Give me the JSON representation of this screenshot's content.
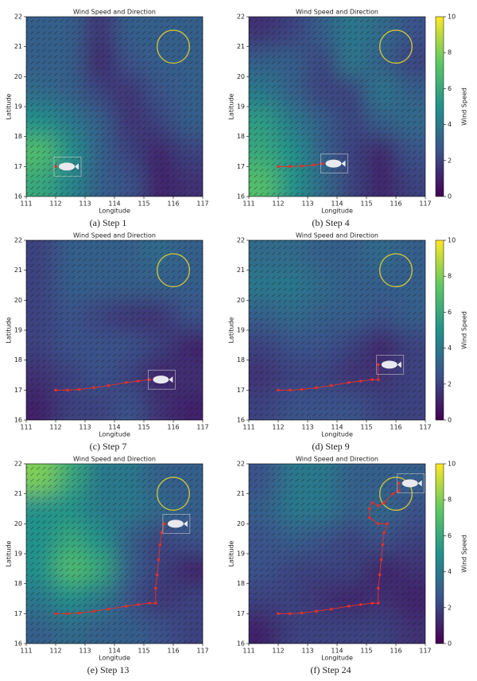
{
  "chart_data": [
    {
      "type": "heatmap",
      "title": "Wind Speed and Direction",
      "x_label": "Longitude",
      "y_label": "Latitude",
      "caption": "(a) Step 1",
      "xlim": [
        111,
        117
      ],
      "ylim": [
        16,
        22
      ],
      "xticks": [
        111,
        112,
        113,
        114,
        115,
        116,
        117
      ],
      "yticks": [
        16,
        17,
        18,
        19,
        20,
        21,
        22
      ],
      "colormap": [
        "#440154",
        "#3b528b",
        "#21918c",
        "#5ec962",
        "#fde725"
      ],
      "clim": [
        0,
        10
      ],
      "wind_speed": [
        [
          3,
          3,
          1.5,
          3,
          3,
          3
        ],
        [
          3,
          3,
          1,
          2.5,
          3,
          3
        ],
        [
          3.5,
          3,
          2,
          1.5,
          2.5,
          3
        ],
        [
          5,
          4,
          3,
          1.5,
          2,
          3
        ],
        [
          7,
          5,
          3,
          2,
          1,
          2
        ],
        [
          6,
          4.5,
          3,
          2.5,
          1,
          1.5
        ]
      ],
      "target": {
        "lon": 116,
        "lat": 21,
        "radius": 0.55,
        "color": "#c9c23a"
      },
      "trajectory": {
        "color": "#e0302a",
        "lon": [
          112
        ],
        "lat": [
          17
        ]
      }
    },
    {
      "type": "heatmap",
      "title": "Wind Speed and Direction",
      "x_label": "Longitude",
      "y_label": "Latitude",
      "caption": "(b) Step 4",
      "xlim": [
        111,
        117
      ],
      "ylim": [
        16,
        22
      ],
      "xticks": [
        111,
        112,
        113,
        114,
        115,
        116,
        117
      ],
      "yticks": [
        16,
        17,
        18,
        19,
        20,
        21,
        22
      ],
      "colormap": [
        "#440154",
        "#3b528b",
        "#21918c",
        "#5ec962",
        "#fde725"
      ],
      "clim": [
        0,
        10
      ],
      "colorbar": {
        "label": "Wind Speed",
        "ticks": [
          0,
          2,
          4,
          6,
          8,
          10
        ]
      },
      "wind_speed": [
        [
          1.5,
          2,
          3,
          4,
          3.5,
          2.5
        ],
        [
          3,
          3,
          2,
          4,
          3,
          2
        ],
        [
          4,
          3,
          2,
          2,
          4,
          3
        ],
        [
          5.5,
          4,
          3,
          2,
          3,
          3.5
        ],
        [
          6,
          5,
          3,
          2,
          1,
          2.5
        ],
        [
          7,
          5,
          3.5,
          2,
          1,
          2
        ]
      ],
      "target": {
        "lon": 116,
        "lat": 21,
        "radius": 0.55,
        "color": "#c9c23a"
      },
      "trajectory": {
        "color": "#e0302a",
        "lon": [
          112,
          112.4,
          112.8,
          113.2,
          113.5
        ],
        "lat": [
          17,
          17,
          17.02,
          17.05,
          17.1
        ]
      }
    },
    {
      "type": "heatmap",
      "title": "Wind Speed and Direction",
      "x_label": "Longitude",
      "y_label": "Latitude",
      "caption": "(c) Step 7",
      "xlim": [
        111,
        117
      ],
      "ylim": [
        16,
        22
      ],
      "xticks": [
        111,
        112,
        113,
        114,
        115,
        116,
        117
      ],
      "yticks": [
        16,
        17,
        18,
        19,
        20,
        21,
        22
      ],
      "colormap": [
        "#440154",
        "#3b528b",
        "#21918c",
        "#5ec962",
        "#fde725"
      ],
      "clim": [
        0,
        10
      ],
      "wind_speed": [
        [
          2,
          3,
          3,
          3,
          3.5,
          3
        ],
        [
          2,
          3,
          3,
          3,
          3,
          3
        ],
        [
          2,
          2.5,
          2,
          1.5,
          1.5,
          2.5
        ],
        [
          2,
          2.5,
          2.5,
          2.5,
          2,
          1
        ],
        [
          1.5,
          2,
          2.5,
          2,
          1,
          1.5
        ],
        [
          1,
          2,
          2,
          2.5,
          1.5,
          1
        ]
      ],
      "target": {
        "lon": 116,
        "lat": 21,
        "radius": 0.55,
        "color": "#c9c23a"
      },
      "trajectory": {
        "color": "#e0302a",
        "lon": [
          112,
          112.4,
          112.8,
          113.3,
          113.8,
          114.4,
          114.8,
          115.2
        ],
        "lat": [
          17,
          17,
          17.02,
          17.08,
          17.15,
          17.25,
          17.3,
          17.35
        ]
      }
    },
    {
      "type": "heatmap",
      "title": "Wind Speed and Direction",
      "x_label": "Longitude",
      "y_label": "Latitude",
      "caption": "(d) Step 9",
      "xlim": [
        111,
        117
      ],
      "ylim": [
        16,
        22
      ],
      "xticks": [
        111,
        112,
        113,
        114,
        115,
        116,
        117
      ],
      "yticks": [
        16,
        17,
        18,
        19,
        20,
        21,
        22
      ],
      "colormap": [
        "#440154",
        "#3b528b",
        "#21918c",
        "#5ec962",
        "#fde725"
      ],
      "clim": [
        0,
        10
      ],
      "colorbar": {
        "label": "Wind Speed",
        "ticks": [
          0,
          2,
          4,
          6,
          8,
          10
        ]
      },
      "wind_speed": [
        [
          3.5,
          3.5,
          3,
          3,
          3.5,
          3
        ],
        [
          4,
          4,
          3.5,
          3,
          3,
          3
        ],
        [
          3,
          3.5,
          3,
          3,
          2.5,
          3
        ],
        [
          2,
          2.5,
          2.5,
          2,
          1,
          2
        ],
        [
          1.5,
          2,
          2,
          1.5,
          1.5,
          2
        ],
        [
          2,
          2.5,
          2.5,
          2.5,
          2,
          2
        ]
      ],
      "target": {
        "lon": 116,
        "lat": 21,
        "radius": 0.55,
        "color": "#c9c23a"
      },
      "trajectory": {
        "color": "#e0302a",
        "lon": [
          112,
          112.4,
          112.8,
          113.3,
          113.8,
          114.4,
          114.8,
          115.2,
          115.4,
          115.4
        ],
        "lat": [
          17,
          17,
          17.02,
          17.08,
          17.15,
          17.25,
          17.3,
          17.35,
          17.35,
          17.85
        ]
      }
    },
    {
      "type": "heatmap",
      "title": "Wind Speed and Direction",
      "x_label": "Longitude",
      "y_label": "Latitude",
      "caption": "(e) Step 13",
      "xlim": [
        111,
        117
      ],
      "ylim": [
        16,
        22
      ],
      "xticks": [
        111,
        112,
        113,
        114,
        115,
        116,
        117
      ],
      "yticks": [
        16,
        17,
        18,
        19,
        20,
        21,
        22
      ],
      "colormap": [
        "#440154",
        "#3b528b",
        "#21918c",
        "#5ec962",
        "#fde725"
      ],
      "clim": [
        0,
        10
      ],
      "wind_speed": [
        [
          8,
          6,
          4,
          4,
          3,
          3
        ],
        [
          5,
          5,
          4,
          4,
          3.5,
          3
        ],
        [
          5,
          6,
          5,
          3,
          2,
          2.5
        ],
        [
          5,
          7,
          6,
          3,
          2,
          1
        ],
        [
          4,
          5,
          4,
          2.5,
          1.5,
          2
        ],
        [
          3,
          3.5,
          3,
          3,
          2.5,
          2
        ]
      ],
      "target": {
        "lon": 116,
        "lat": 21,
        "radius": 0.55,
        "color": "#c9c23a"
      },
      "trajectory": {
        "color": "#e0302a",
        "lon": [
          112,
          112.4,
          112.8,
          113.3,
          113.8,
          114.4,
          114.8,
          115.2,
          115.4,
          115.4,
          115.45,
          115.5,
          115.55,
          115.6,
          115.7
        ],
        "lat": [
          17,
          17,
          17.02,
          17.08,
          17.15,
          17.25,
          17.3,
          17.35,
          17.35,
          17.85,
          18.3,
          18.8,
          19.3,
          19.7,
          20
        ]
      }
    },
    {
      "type": "heatmap",
      "title": "Wind Speed and Direction",
      "x_label": "Longitude",
      "y_label": "Latitude",
      "caption": "(f) Step 24",
      "xlim": [
        111,
        117
      ],
      "ylim": [
        16,
        22
      ],
      "xticks": [
        111,
        112,
        113,
        114,
        115,
        116,
        117
      ],
      "yticks": [
        16,
        17,
        18,
        19,
        20,
        21,
        22
      ],
      "colormap": [
        "#440154",
        "#3b528b",
        "#21918c",
        "#5ec962",
        "#fde725"
      ],
      "clim": [
        0,
        10
      ],
      "colorbar": {
        "label": "Wind Speed",
        "ticks": [
          0,
          2,
          4,
          6,
          8,
          10
        ]
      },
      "wind_speed": [
        [
          2.5,
          4,
          4,
          3,
          3,
          3
        ],
        [
          3,
          4,
          4,
          3,
          3.5,
          2.5
        ],
        [
          2.5,
          3,
          2.5,
          2,
          2.5,
          2
        ],
        [
          2.5,
          2,
          2,
          2,
          1,
          1.5
        ],
        [
          2,
          2,
          1.5,
          1,
          1.5,
          1
        ],
        [
          1,
          2,
          2,
          2,
          2,
          1.5
        ]
      ],
      "target": {
        "lon": 116,
        "lat": 21,
        "radius": 0.55,
        "color": "#c9c23a"
      },
      "trajectory": {
        "color": "#e0302a",
        "lon": [
          112,
          112.4,
          112.8,
          113.3,
          113.8,
          114.4,
          114.8,
          115.2,
          115.4,
          115.4,
          115.45,
          115.5,
          115.55,
          115.6,
          115.7,
          115.4,
          115.1,
          115.1,
          115.2,
          115.4,
          115.6,
          115.9,
          116.1,
          116.1
        ],
        "lat": [
          17,
          17,
          17.02,
          17.08,
          17.15,
          17.25,
          17.3,
          17.35,
          17.35,
          17.85,
          18.3,
          18.8,
          19.3,
          19.7,
          20,
          20,
          20.2,
          20.5,
          20.7,
          20.6,
          20.7,
          21,
          21.1,
          21.35
        ]
      }
    }
  ]
}
